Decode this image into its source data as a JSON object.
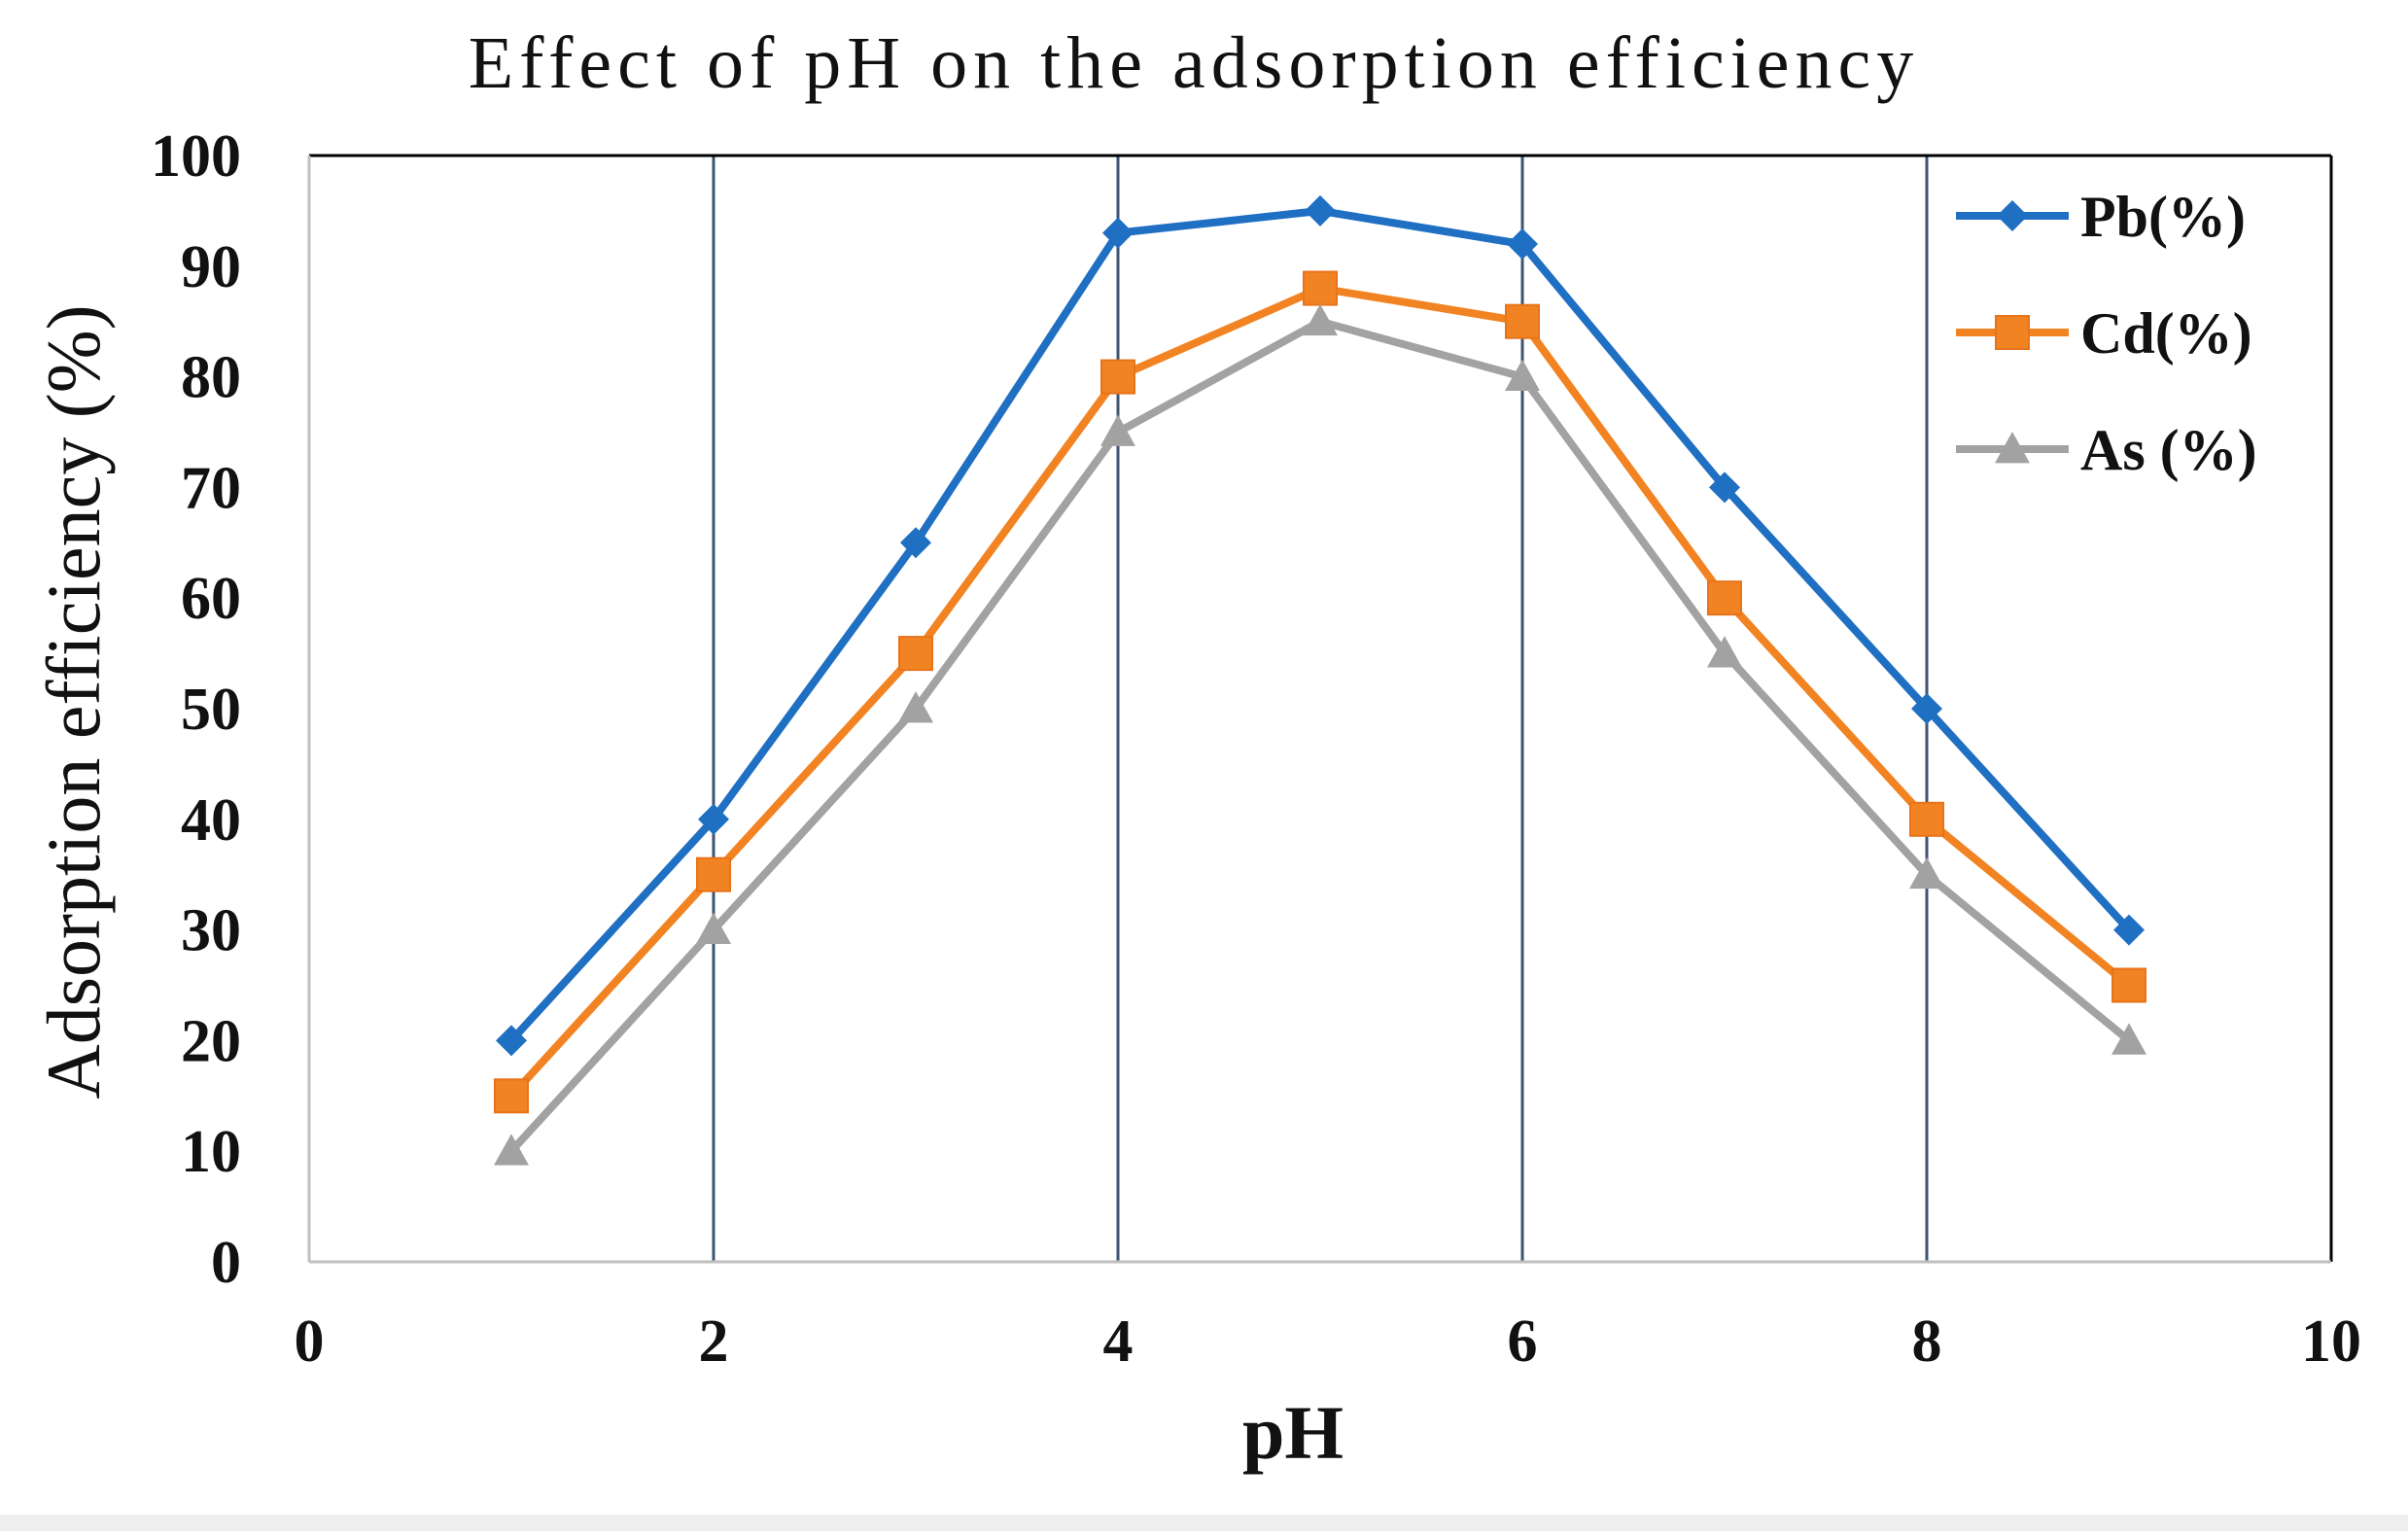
{
  "chart_data": {
    "type": "line",
    "title": "Effect of pH on the adsorption efficiency",
    "xlabel": "pH",
    "ylabel": "Adsorption efficiency (%)",
    "xlim": [
      0,
      10
    ],
    "ylim": [
      0,
      100
    ],
    "x_ticks": [
      "0",
      "2",
      "4",
      "6",
      "8",
      "10"
    ],
    "y_ticks": [
      "0",
      "10",
      "20",
      "30",
      "40",
      "50",
      "60",
      "70",
      "80",
      "90",
      "100"
    ],
    "vertical_gridlines_at": [
      2,
      4,
      6,
      8
    ],
    "legend_position": "top-right",
    "x": [
      1,
      2,
      3,
      4,
      5,
      6,
      7,
      8,
      9
    ],
    "series": [
      {
        "name": "Pb(%)",
        "marker": "diamond",
        "color": "#1f6fc2",
        "values": [
          20,
          40,
          65,
          93,
          95,
          92,
          70,
          50,
          30
        ]
      },
      {
        "name": "Cd(%)",
        "marker": "square",
        "color": "#f28322",
        "values": [
          15,
          35,
          55,
          80,
          88,
          85,
          60,
          40,
          25
        ]
      },
      {
        "name": "As (%)",
        "marker": "triangle",
        "color": "#a2a2a2",
        "values": [
          10,
          30,
          50,
          75,
          85,
          80,
          55,
          35,
          20
        ]
      }
    ]
  },
  "colors": {
    "axis": "#000000",
    "gridline": "#3d5470",
    "background": "#ffffff"
  }
}
